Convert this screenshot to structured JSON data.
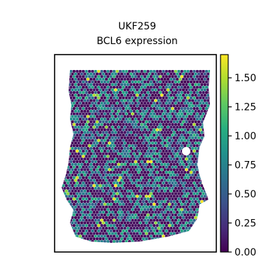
{
  "chart_data": {
    "type": "scatter",
    "subtype": "spatial-hexagonal-spot-map",
    "title_line1": "UKF259",
    "title_line2": "BCL6 expression",
    "xlabel": "",
    "ylabel": "",
    "axes_ticks_visible": false,
    "grid": false,
    "colorbar": {
      "colormap": "viridis",
      "range": [
        0.0,
        1.7
      ],
      "ticks": [
        0.0,
        0.25,
        0.5,
        0.75,
        1.0,
        1.25,
        1.5
      ],
      "tick_labels": [
        "0.00",
        "0.25",
        "0.50",
        "0.75",
        "1.00",
        "1.25",
        "1.50"
      ],
      "placement": "right"
    },
    "value_distribution": {
      "fraction_zero_approx": 0.55,
      "typical_nonzero_range": [
        0.5,
        1.1
      ],
      "max_approx": 1.7
    },
    "notes": "Each spot is one tissue location colored by BCL6 expression; most spots are near 0 (dark purple), with scattered teal/green spots and a few yellow highlights."
  }
}
